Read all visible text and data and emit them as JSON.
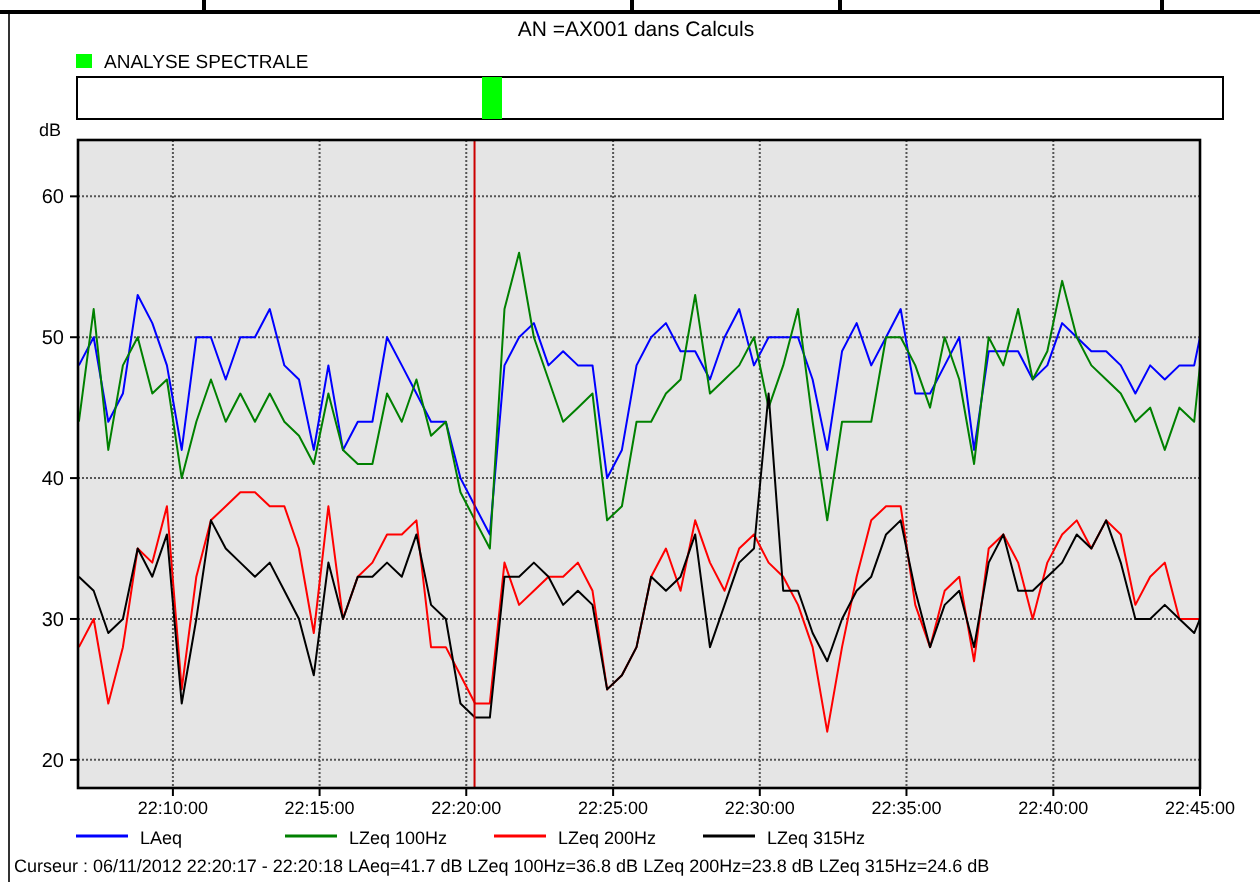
{
  "chart_data": {
    "type": "line",
    "title": "AN =AX001 dans Calculs",
    "ylabel": "dB",
    "annotations": [
      "ANALYSE SPECTRALE",
      "Curseur : 06/11/2012 22:20:17 - 22:20:18  LAeq=41.7 dB  LZeq 100Hz=36.8 dB  LZeq 200Hz=23.8 dB  LZeq 315Hz=24.6 dB"
    ],
    "x": [
      22.1133,
      22.1217,
      22.13,
      22.1383,
      22.1467,
      22.155,
      22.1633,
      22.1717,
      22.18,
      22.1883,
      22.1967,
      22.205,
      22.2133,
      22.2217,
      22.23,
      22.2383,
      22.2467,
      22.255,
      22.2633,
      22.2717,
      22.28,
      22.2883,
      22.2967,
      22.305,
      22.3133,
      22.3217,
      22.33,
      22.3383,
      22.3467,
      22.355,
      22.3633,
      22.3717,
      22.38,
      22.3883,
      22.3967,
      22.405,
      22.4133,
      22.4217,
      22.43,
      22.4383,
      22.4467,
      22.455,
      22.4633,
      22.4717,
      22.48,
      22.4883,
      22.4967,
      22.505,
      22.5133,
      22.5217,
      22.53,
      22.5383,
      22.5467,
      22.555,
      22.5633,
      22.5717,
      22.58,
      22.5883,
      22.5967,
      22.605,
      22.6133,
      22.6217,
      22.63,
      22.6383,
      22.6467,
      22.655,
      22.6633,
      22.6717,
      22.68,
      22.6883,
      22.6967,
      22.705,
      22.7133,
      22.7217,
      22.73,
      22.7383,
      22.7467,
      22.75
    ],
    "series": [
      {
        "name": "LAeq",
        "color": "#0000ff",
        "values": [
          48,
          50,
          44,
          46,
          53,
          51,
          48,
          42,
          50,
          50,
          47,
          50,
          50,
          52,
          48,
          47,
          42,
          48,
          42,
          44,
          44,
          50,
          48,
          46,
          44,
          44,
          40,
          38,
          36,
          48,
          50,
          51,
          48,
          49,
          48,
          48,
          40,
          42,
          48,
          50,
          51,
          49,
          49,
          47,
          50,
          52,
          48,
          50,
          50,
          50,
          47,
          42,
          49,
          51,
          48,
          50,
          52,
          46,
          46,
          48,
          50,
          42,
          49,
          49,
          49,
          47,
          48,
          51,
          50,
          49,
          49,
          48,
          46,
          48,
          47,
          48,
          48,
          50
        ]
      },
      {
        "name": "LZeq 100Hz",
        "color": "#008000",
        "values": [
          44,
          52,
          42,
          48,
          50,
          46,
          47,
          40,
          44,
          47,
          44,
          46,
          44,
          46,
          44,
          43,
          41,
          46,
          42,
          41,
          41,
          46,
          44,
          47,
          43,
          44,
          39,
          37,
          35,
          52,
          56,
          50,
          47,
          44,
          45,
          46,
          37,
          38,
          44,
          44,
          46,
          47,
          53,
          46,
          47,
          48,
          50,
          45,
          48,
          52,
          44,
          37,
          44,
          44,
          44,
          50,
          50,
          48,
          45,
          50,
          47,
          41,
          50,
          48,
          52,
          47,
          49,
          54,
          50,
          48,
          47,
          46,
          44,
          45,
          42,
          45,
          44,
          48
        ]
      },
      {
        "name": "LZeq 200Hz",
        "color": "#ff0000",
        "values": [
          28,
          30,
          24,
          28,
          35,
          34,
          38,
          25,
          33,
          37,
          38,
          39,
          39,
          38,
          38,
          35,
          29,
          38,
          30,
          33,
          34,
          36,
          36,
          37,
          28,
          28,
          26,
          24,
          24,
          34,
          31,
          32,
          33,
          33,
          34,
          32,
          25,
          26,
          28,
          33,
          35,
          32,
          37,
          34,
          32,
          35,
          36,
          34,
          33,
          31,
          28,
          22,
          28,
          33,
          37,
          38,
          38,
          31,
          28,
          32,
          33,
          27,
          35,
          36,
          34,
          30,
          34,
          36,
          37,
          35,
          37,
          36,
          31,
          33,
          34,
          30,
          30,
          30
        ]
      },
      {
        "name": "LZeq 315Hz",
        "color": "#000000",
        "values": [
          33,
          32,
          29,
          30,
          35,
          33,
          36,
          24,
          30,
          37,
          35,
          34,
          33,
          34,
          32,
          30,
          26,
          34,
          30,
          33,
          33,
          34,
          33,
          36,
          31,
          30,
          24,
          23,
          23,
          33,
          33,
          34,
          33,
          31,
          32,
          31,
          25,
          26,
          28,
          33,
          32,
          33,
          36,
          28,
          31,
          34,
          35,
          46,
          32,
          32,
          29,
          27,
          30,
          32,
          33,
          36,
          37,
          32,
          28,
          31,
          32,
          28,
          34,
          36,
          32,
          32,
          33,
          34,
          36,
          35,
          37,
          34,
          30,
          30,
          31,
          30,
          29,
          30
        ]
      }
    ],
    "xlim": [
      22.1128,
      22.75
    ],
    "xticks": [
      {
        "value": 22.1667,
        "label": "22:10:00"
      },
      {
        "value": 22.25,
        "label": "22:15:00"
      },
      {
        "value": 22.3333,
        "label": "22:20:00"
      },
      {
        "value": 22.4167,
        "label": "22:25:00"
      },
      {
        "value": 22.5,
        "label": "22:30:00"
      },
      {
        "value": 22.5833,
        "label": "22:35:00"
      },
      {
        "value": 22.6667,
        "label": "22:40:00"
      },
      {
        "value": 22.75,
        "label": "22:45:00"
      }
    ],
    "ylim": [
      18,
      64
    ],
    "yticks": [
      20,
      30,
      40,
      50,
      60
    ],
    "ref_lines": [
      {
        "axis": "x",
        "value": 22.338,
        "color": "#cc0000"
      }
    ],
    "grid": true,
    "legend": "bottom",
    "marker": "none",
    "line_style": "solid"
  }
}
